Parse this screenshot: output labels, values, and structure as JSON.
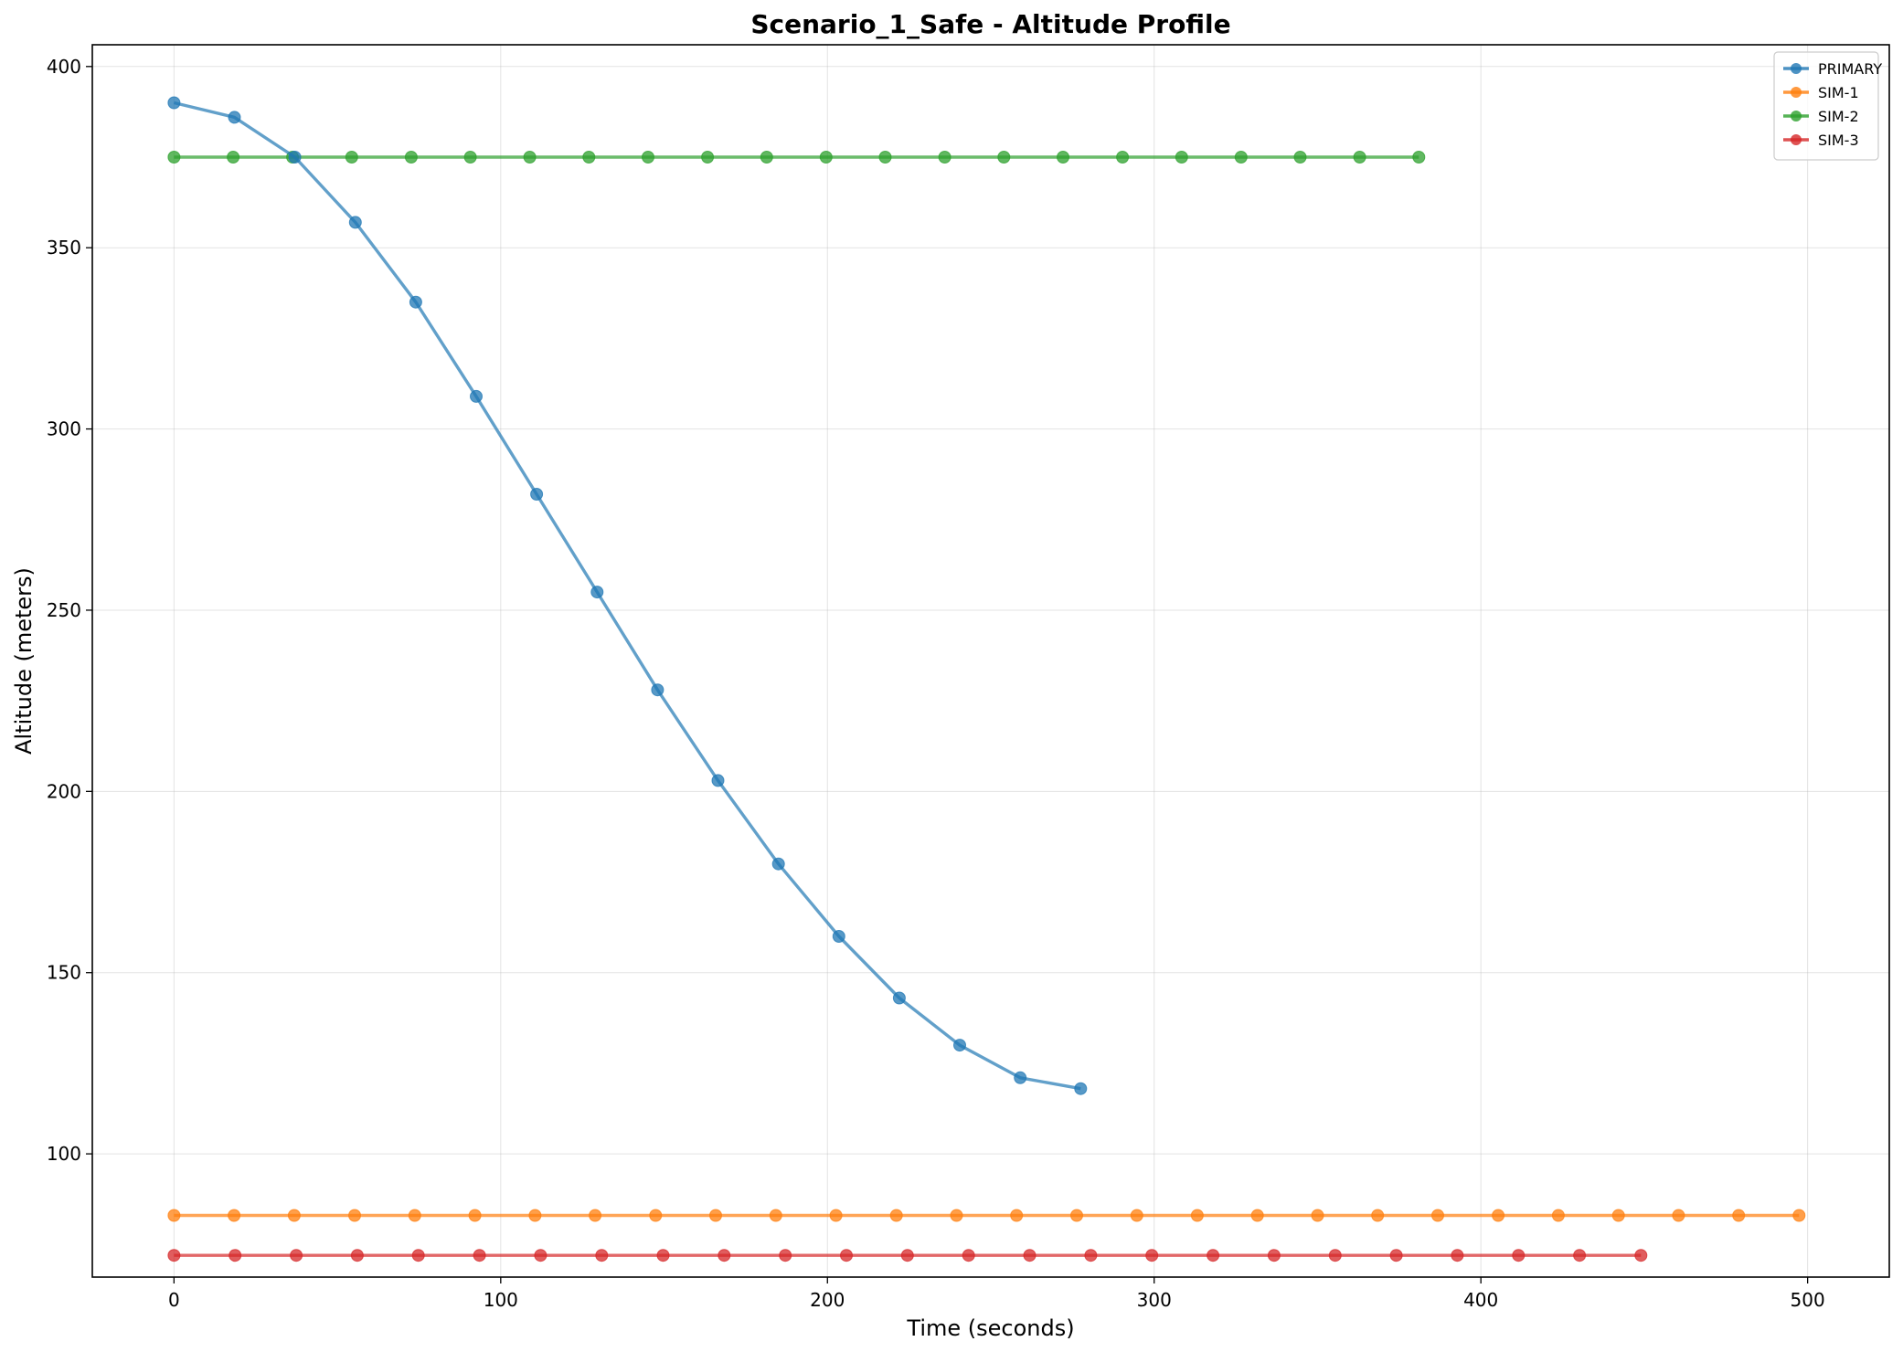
{
  "chart_data": {
    "type": "line",
    "title": "Scenario_1_Safe - Altitude Profile",
    "xlabel": "Time (seconds)",
    "ylabel": "Altitude (meters)",
    "xlim": [
      -25,
      525
    ],
    "ylim": [
      66,
      406
    ],
    "xticks": [
      0,
      100,
      200,
      300,
      400,
      500
    ],
    "yticks": [
      100,
      150,
      200,
      250,
      300,
      350,
      400
    ],
    "grid": true,
    "legend_position": "top-right",
    "series": [
      {
        "name": "PRIMARY",
        "color": "#1f77b4",
        "x": [
          0,
          18.5,
          37,
          55.5,
          74,
          92.5,
          111,
          129.5,
          148,
          166.5,
          185,
          203.5,
          222,
          240.5,
          259,
          277.5
        ],
        "y": [
          390,
          386,
          375,
          357,
          335,
          309,
          282,
          255,
          228,
          203,
          180,
          160,
          143,
          130,
          121,
          118
        ]
      },
      {
        "name": "SIM-1",
        "color": "#ff7f0e",
        "x": [
          0,
          18.4,
          36.8,
          55.3,
          73.7,
          92.1,
          110.5,
          128.9,
          147.4,
          165.8,
          184.2,
          202.6,
          221.1,
          239.5,
          257.9,
          276.3,
          294.7,
          313.2,
          331.6,
          350,
          368.4,
          386.8,
          405.3,
          423.7,
          442.1,
          460.5,
          478.9,
          497.4
        ],
        "y": [
          83,
          83,
          83,
          83,
          83,
          83,
          83,
          83,
          83,
          83,
          83,
          83,
          83,
          83,
          83,
          83,
          83,
          83,
          83,
          83,
          83,
          83,
          83,
          83,
          83,
          83,
          83,
          83
        ]
      },
      {
        "name": "SIM-2",
        "color": "#2ca02c",
        "x": [
          0,
          18.1,
          36.3,
          54.4,
          72.6,
          90.7,
          108.9,
          127,
          145.1,
          163.3,
          181.4,
          199.6,
          217.7,
          235.9,
          254,
          272.1,
          290.3,
          308.4,
          326.6,
          344.7,
          362.9,
          381
        ],
        "y": [
          375,
          375,
          375,
          375,
          375,
          375,
          375,
          375,
          375,
          375,
          375,
          375,
          375,
          375,
          375,
          375,
          375,
          375,
          375,
          375,
          375,
          375
        ]
      },
      {
        "name": "SIM-3",
        "color": "#d62728",
        "x": [
          0,
          18.7,
          37.4,
          56.1,
          74.8,
          93.5,
          112.2,
          130.9,
          149.7,
          168.4,
          187.1,
          205.8,
          224.5,
          243.2,
          261.9,
          280.6,
          299.3,
          318,
          336.7,
          355.4,
          374.1,
          392.8,
          411.5,
          430.2,
          449
        ],
        "y": [
          72,
          72,
          72,
          72,
          72,
          72,
          72,
          72,
          72,
          72,
          72,
          72,
          72,
          72,
          72,
          72,
          72,
          72,
          72,
          72,
          72,
          72,
          72,
          72,
          72
        ]
      }
    ]
  }
}
